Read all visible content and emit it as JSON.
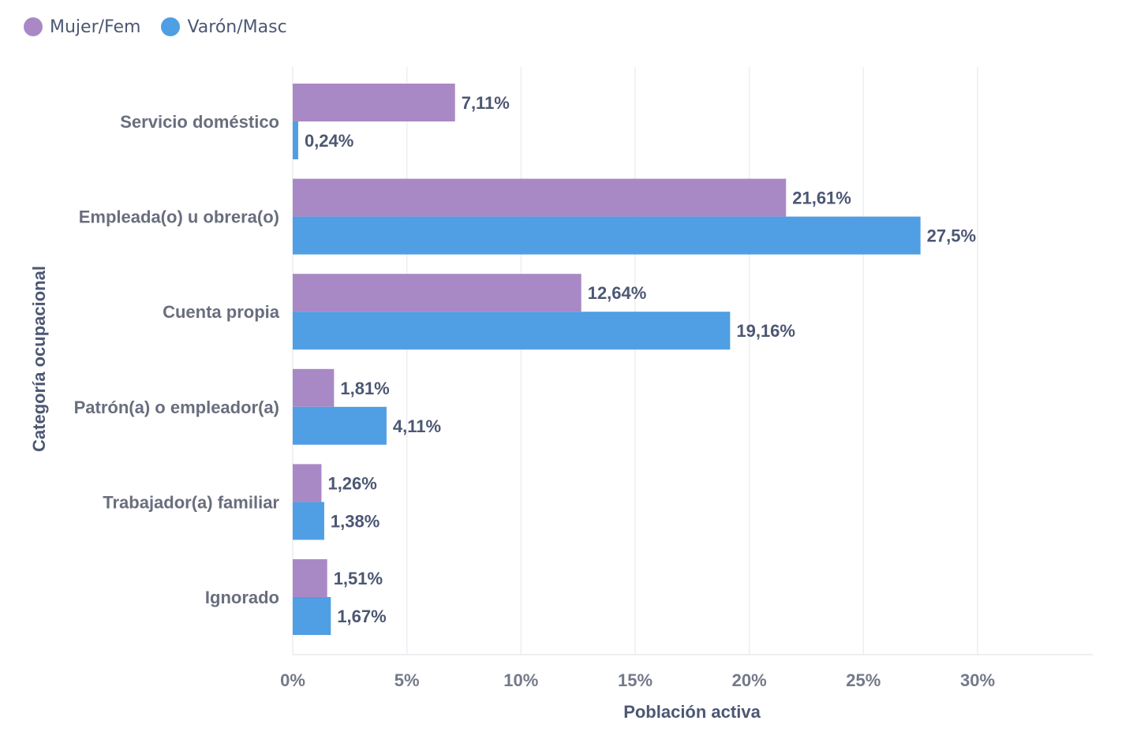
{
  "chart_data": {
    "type": "bar",
    "orientation": "horizontal",
    "categories": [
      "Servicio doméstico",
      "Empleada(o) u obrera(o)",
      "Cuenta propia",
      "Patrón(a) o empleador(a)",
      "Trabajador(a) familiar",
      "Ignorado"
    ],
    "series": [
      {
        "name": "Mujer/Fem",
        "color": "#a989c5",
        "values": [
          7.11,
          21.61,
          12.64,
          1.81,
          1.26,
          1.51
        ],
        "labels": [
          "7,11%",
          "21,61%",
          "12,64%",
          "1,81%",
          "1,26%",
          "1,51%"
        ]
      },
      {
        "name": "Varón/Masc",
        "color": "#509ee3",
        "values": [
          0.24,
          27.5,
          19.16,
          4.11,
          1.38,
          1.67
        ],
        "labels": [
          "0,24%",
          "27,5%",
          "19,16%",
          "4,11%",
          "1,38%",
          "1,67%"
        ]
      }
    ],
    "xlabel": "Población activa",
    "ylabel": "Categoría ocupacional",
    "xlim": [
      0,
      35
    ],
    "xticks": [
      0,
      5,
      10,
      15,
      20,
      25,
      30
    ],
    "xtick_labels": [
      "0%",
      "5%",
      "10%",
      "15%",
      "20%",
      "25%",
      "30%"
    ],
    "grid": true,
    "legend_position": "top-left"
  },
  "legend": {
    "female_label": "Mujer/Fem",
    "male_label": "Varón/Masc"
  }
}
